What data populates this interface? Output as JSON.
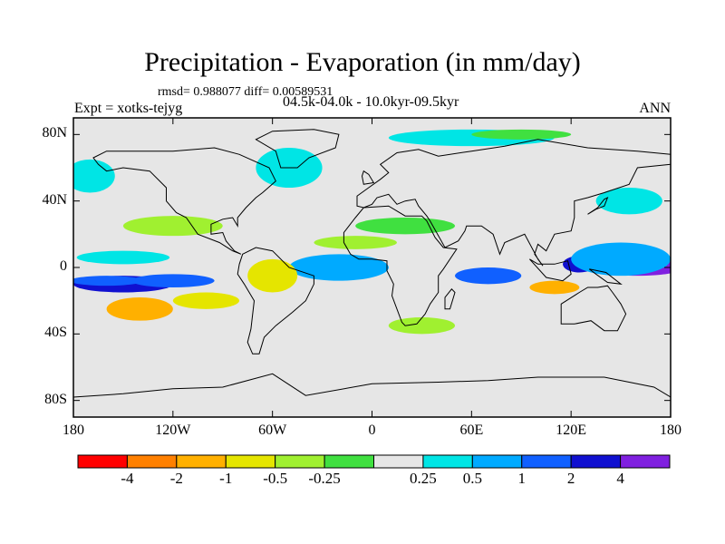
{
  "chart_data": {
    "type": "heatmap",
    "title": "Precipitation - Evaporation (in mm/day)",
    "stats_label": "rmsd= 0.988077 diff= 0.00589531",
    "experiment_label": "Expt = xotks-tejyg",
    "period_label": "04.5k-04.0k - 10.0kyr-09.5kyr",
    "season_label": "ANN",
    "projection": "cylindrical equidistant world map with coastlines",
    "xlim": [
      -180,
      180
    ],
    "ylim": [
      -90,
      90
    ],
    "x_ticks": [
      {
        "value": -180,
        "label": "180"
      },
      {
        "value": -120,
        "label": "120W"
      },
      {
        "value": -60,
        "label": "60W"
      },
      {
        "value": 0,
        "label": "0"
      },
      {
        "value": 60,
        "label": "60E"
      },
      {
        "value": 120,
        "label": "120E"
      },
      {
        "value": 180,
        "label": "180"
      }
    ],
    "y_ticks": [
      {
        "value": 80,
        "label": "80N"
      },
      {
        "value": 40,
        "label": "40N"
      },
      {
        "value": 0,
        "label": "0"
      },
      {
        "value": -40,
        "label": "40S"
      },
      {
        "value": -80,
        "label": "80S"
      }
    ],
    "colorbar": {
      "colors": [
        "#ff0000",
        "#ff8000",
        "#ffb000",
        "#e5e500",
        "#a0f030",
        "#40e040",
        "#e6e6e6",
        "#00e5e5",
        "#00aaff",
        "#1060ff",
        "#1010d0",
        "#8020e0"
      ],
      "labels": [
        "-4",
        "-2",
        "-1",
        "-0.5",
        "-0.25",
        "0.25",
        "0.5",
        "1",
        "2",
        "4"
      ]
    },
    "background_color": "#e6e6e6",
    "regions": [
      {
        "class": 10,
        "lon": -150,
        "lat": -10,
        "rx": 30,
        "ry": 5
      },
      {
        "class": 9,
        "lon": -160,
        "lat": -8,
        "rx": 22,
        "ry": 3
      },
      {
        "class": 9,
        "lon": -120,
        "lat": -8,
        "rx": 25,
        "ry": 4
      },
      {
        "class": 9,
        "lon": -30,
        "lat": 0,
        "rx": 16,
        "ry": 6
      },
      {
        "class": 9,
        "lon": 0,
        "lat": 0,
        "rx": 10,
        "ry": 4
      },
      {
        "class": 8,
        "lon": -20,
        "lat": 0,
        "rx": 30,
        "ry": 8
      },
      {
        "class": 9,
        "lon": 70,
        "lat": -5,
        "rx": 20,
        "ry": 5
      },
      {
        "class": 11,
        "lon": 160,
        "lat": 0,
        "rx": 28,
        "ry": 5
      },
      {
        "class": 10,
        "lon": 125,
        "lat": 2,
        "rx": 10,
        "ry": 5
      },
      {
        "class": 8,
        "lon": 150,
        "lat": 5,
        "rx": 30,
        "ry": 10
      },
      {
        "class": 7,
        "lon": -150,
        "lat": 6,
        "rx": 28,
        "ry": 4
      },
      {
        "class": 2,
        "lon": -140,
        "lat": -25,
        "rx": 20,
        "ry": 7
      },
      {
        "class": 3,
        "lon": -100,
        "lat": -20,
        "rx": 20,
        "ry": 5
      },
      {
        "class": 2,
        "lon": 110,
        "lat": -12,
        "rx": 15,
        "ry": 4
      },
      {
        "class": 3,
        "lon": -60,
        "lat": -5,
        "rx": 15,
        "ry": 10
      },
      {
        "class": 4,
        "lon": -120,
        "lat": 25,
        "rx": 30,
        "ry": 6
      },
      {
        "class": 4,
        "lon": -10,
        "lat": 15,
        "rx": 25,
        "ry": 4
      },
      {
        "class": 5,
        "lon": 20,
        "lat": 25,
        "rx": 30,
        "ry": 5
      },
      {
        "class": 7,
        "lon": -50,
        "lat": 60,
        "rx": 20,
        "ry": 12
      },
      {
        "class": 7,
        "lon": 60,
        "lat": 78,
        "rx": 50,
        "ry": 5
      },
      {
        "class": 5,
        "lon": 90,
        "lat": 80,
        "rx": 30,
        "ry": 3
      },
      {
        "class": 4,
        "lon": 30,
        "lat": -35,
        "rx": 20,
        "ry": 5
      },
      {
        "class": 7,
        "lon": -170,
        "lat": 55,
        "rx": 15,
        "ry": 10
      },
      {
        "class": 7,
        "lon": 155,
        "lat": 40,
        "rx": 20,
        "ry": 8
      }
    ]
  }
}
